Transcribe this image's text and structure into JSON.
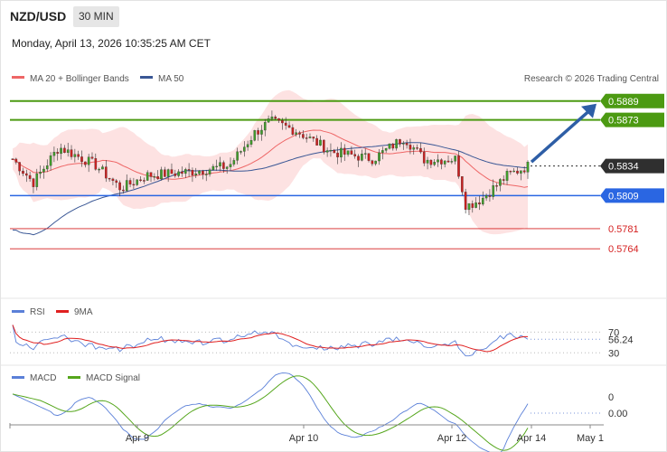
{
  "header": {
    "pair": "NZD/USD",
    "interval": "30 MIN",
    "datetime": "Monday, April 13, 2026 10:35:25 AM CET"
  },
  "legend": {
    "ma20": "MA 20 + Bollinger Bands",
    "ma50": "MA 50",
    "rsi": "RSI",
    "rsi9": "9MA",
    "macd": "MACD",
    "macd_signal": "MACD Signal"
  },
  "copyright": "Research © 2026 Trading Central",
  "colors": {
    "resistance": "#4c9a12",
    "pivot": "#2a66e2",
    "support": "#d52121",
    "bull": "#3f9d2a",
    "bear": "#cc2020",
    "ma20": "#ee6666",
    "ma50": "#3a5795",
    "band": "#fddddd",
    "current": "#2f2f2f",
    "arrow": "#2e5ea6",
    "rsi": "#5b80d8",
    "rsi9": "#e02020",
    "macd": "#5b80d8",
    "macd_signal": "#55a61c"
  },
  "chart_data": {
    "type": "candlestick",
    "y_range": [
      0.5745,
      0.5898
    ],
    "levels": [
      {
        "value": 0.5889,
        "label": "0.5889",
        "kind": "resistance"
      },
      {
        "value": 0.5873,
        "label": "0.5873",
        "kind": "resistance"
      },
      {
        "value": 0.5834,
        "label": "0.5834",
        "kind": "current"
      },
      {
        "value": 0.5809,
        "label": "0.5809",
        "kind": "pivot"
      },
      {
        "value": 0.5781,
        "label": "0.5781",
        "kind": "support"
      },
      {
        "value": 0.5764,
        "label": "0.5764",
        "kind": "support"
      }
    ],
    "x_labels": [
      "Apr 9",
      "Apr 10",
      "Apr 12",
      "Apr 14",
      "May 1"
    ],
    "price_path": [
      [
        0,
        0.584
      ],
      [
        0.04,
        0.582
      ],
      [
        0.09,
        0.585
      ],
      [
        0.16,
        0.5835
      ],
      [
        0.21,
        0.5815
      ],
      [
        0.26,
        0.5826
      ],
      [
        0.34,
        0.5829
      ],
      [
        0.42,
        0.5834
      ],
      [
        0.47,
        0.5862
      ],
      [
        0.5,
        0.5872
      ],
      [
        0.55,
        0.5864
      ],
      [
        0.62,
        0.5846
      ],
      [
        0.7,
        0.584
      ],
      [
        0.76,
        0.5858
      ],
      [
        0.8,
        0.5839
      ],
      [
        0.86,
        0.584
      ],
      [
        0.88,
        0.58
      ],
      [
        0.91,
        0.5806
      ],
      [
        0.96,
        0.5826
      ],
      [
        1.0,
        0.5834
      ]
    ],
    "rsi": {
      "label_values": [
        "70",
        "56.24",
        "30"
      ],
      "current": 56.24
    },
    "macd": {
      "label_values": [
        "0",
        "0.00"
      ],
      "current": 0.0
    }
  }
}
